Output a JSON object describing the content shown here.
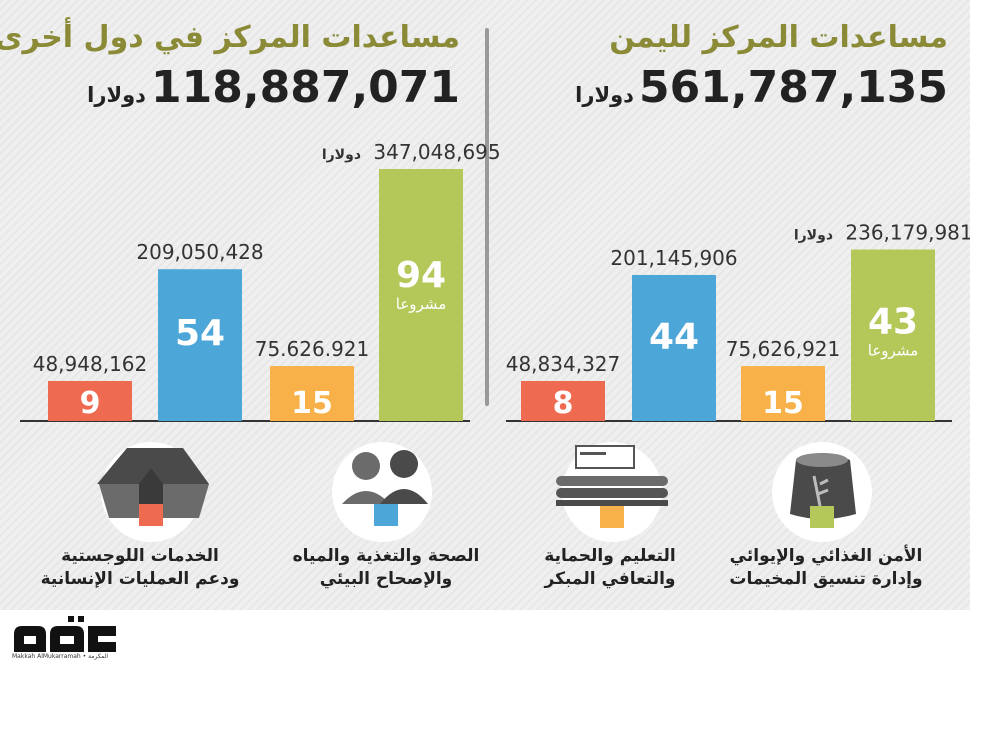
{
  "yemen": {
    "title": "مساعدات المركز لليمن",
    "total": "561,787,135",
    "unit": "دولارا"
  },
  "other": {
    "title": "مساعدات المركز في دول أخرى",
    "total": "118,887,071",
    "unit": "دولارا"
  },
  "currency_word": "دولارا",
  "projects_word": "مشروعا",
  "categories": [
    {
      "key": "logistics",
      "label_line1": "الخدمات اللوجستية",
      "label_line2": "ودعم العمليات الإنسانية",
      "color": "#ee6b52",
      "icon": "tent-icon"
    },
    {
      "key": "health",
      "label_line1": "الصحة والتغذية والمياه",
      "label_line2": "والإصحاح البيئي",
      "color": "#4ca6d8",
      "icon": "medical-staff-icon"
    },
    {
      "key": "education",
      "label_line1": "التعليم والحماية",
      "label_line2": "والتعافي المبكر",
      "color": "#f7b148",
      "icon": "classroom-icon"
    },
    {
      "key": "food",
      "label_line1": "الأمن الغذائي والإيوائي",
      "label_line2": "وإدارة تنسيق المخيمات",
      "color": "#b4c85a",
      "icon": "food-sack-icon"
    }
  ],
  "chart_data": [
    {
      "type": "bar",
      "title": "مساعدات المركز في دول أخرى",
      "categories": [
        "الخدمات اللوجستية ودعم العمليات الإنسانية",
        "الصحة والتغذية والمياه والإصحاح البيئي",
        "التعليم والحماية والتعافي المبكر",
        "الأمن الغذائي والإيوائي وإدارة تنسيق المخيمات"
      ],
      "value_labels": [
        "48,948,162",
        "209,050,428",
        "75.626.921",
        "347,048,695"
      ],
      "values": [
        48948162,
        209050428,
        75626921,
        347048695
      ],
      "project_counts": [
        9,
        54,
        15,
        94
      ],
      "colors": [
        "#ee6b52",
        "#4ca6d8",
        "#f7b148",
        "#b4c85a"
      ],
      "ylim": [
        0,
        380000000
      ]
    },
    {
      "type": "bar",
      "title": "مساعدات المركز لليمن",
      "categories": [
        "الخدمات اللوجستية ودعم العمليات الإنسانية",
        "الصحة والتغذية والمياه والإصحاح البيئي",
        "التعليم والحماية والتعافي المبكر",
        "الأمن الغذائي والإيوائي وإدارة تنسيق المخيمات"
      ],
      "value_labels": [
        "48,834,327",
        "201,145,906",
        "75,626,921",
        "236,179,981"
      ],
      "values": [
        48834327,
        201145906,
        75626921,
        236179981
      ],
      "project_counts": [
        8,
        44,
        15,
        43
      ],
      "colors": [
        "#ee6b52",
        "#4ca6d8",
        "#f7b148",
        "#b4c85a"
      ],
      "ylim": [
        0,
        380000000
      ]
    }
  ],
  "logo": {
    "name": "مكة",
    "subtitle": "Makkah AlMukarramah • المكرمة"
  }
}
